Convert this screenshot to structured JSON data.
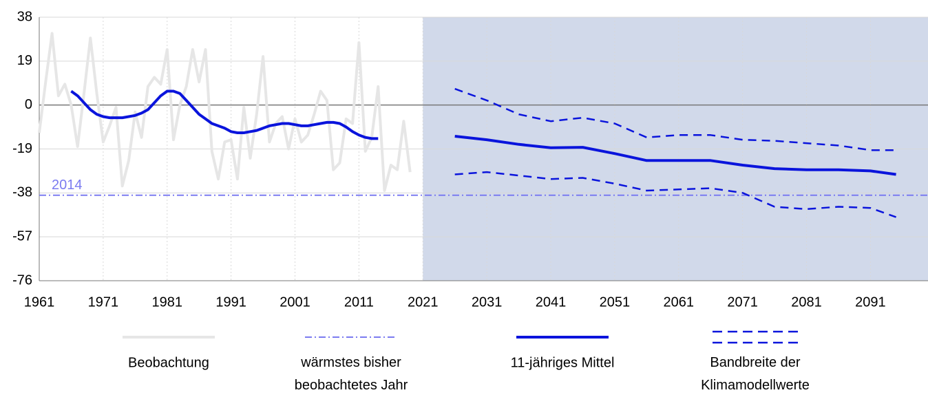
{
  "chart_data": {
    "type": "line",
    "xlim": [
      1961,
      2100
    ],
    "ylim": [
      -76,
      38
    ],
    "xticks": [
      1961,
      1971,
      1981,
      1991,
      2001,
      2011,
      2021,
      2031,
      2041,
      2051,
      2061,
      2071,
      2081,
      2091
    ],
    "yticks": [
      38,
      19,
      0,
      -19,
      -38,
      -57,
      -76
    ],
    "grid": true,
    "shade_from": 2021,
    "shade_color": "#d1d9ea",
    "reference_line": {
      "name": "wärmstes bisher\nbeobachtetes Jahr",
      "label": "2014",
      "value": -39,
      "color": "#7b7bf0"
    },
    "series": [
      {
        "name": "Beobachtung",
        "color": "#e6e6e6",
        "style": "solid",
        "x": [
          1961,
          1962,
          1963,
          1964,
          1965,
          1966,
          1967,
          1968,
          1969,
          1970,
          1971,
          1972,
          1973,
          1974,
          1975,
          1976,
          1977,
          1978,
          1979,
          1980,
          1981,
          1982,
          1983,
          1984,
          1985,
          1986,
          1987,
          1988,
          1989,
          1990,
          1991,
          1992,
          1993,
          1994,
          1995,
          1996,
          1997,
          1998,
          1999,
          2000,
          2001,
          2002,
          2003,
          2004,
          2005,
          2006,
          2007,
          2008,
          2009,
          2010,
          2011,
          2012,
          2013,
          2014,
          2015,
          2016,
          2017,
          2018,
          2019
        ],
        "values": [
          -12,
          10,
          31,
          4,
          9,
          0,
          -18,
          5,
          29,
          5,
          -16,
          -9,
          -1,
          -35,
          -24,
          -3,
          -14,
          8,
          12,
          9,
          24,
          -15,
          0,
          8,
          24,
          10,
          24,
          -20,
          -32,
          -16,
          -15,
          -32,
          -1,
          -23,
          -4,
          21,
          -16,
          -8,
          -5,
          -19,
          -6,
          -16,
          -13,
          -4,
          6,
          2,
          -28,
          -25,
          -6,
          -8,
          27,
          -20,
          -14,
          8,
          -37,
          -26,
          -28,
          -7,
          -29
        ]
      },
      {
        "name": "11-jähriges Mittel",
        "color": "#0a14dc",
        "style": "solid",
        "x": [
          1966,
          1967,
          1968,
          1969,
          1970,
          1971,
          1972,
          1973,
          1974,
          1975,
          1976,
          1977,
          1978,
          1979,
          1980,
          1981,
          1982,
          1983,
          1984,
          1985,
          1986,
          1987,
          1988,
          1989,
          1990,
          1991,
          1992,
          1993,
          1994,
          1995,
          1996,
          1997,
          1998,
          1999,
          2000,
          2001,
          2002,
          2003,
          2004,
          2005,
          2006,
          2007,
          2008,
          2009,
          2010,
          2011,
          2012,
          2013,
          2014,
          2020,
          2026,
          2031,
          2036,
          2041,
          2046,
          2051,
          2056,
          2061,
          2066,
          2071,
          2076,
          2081,
          2086,
          2091,
          2095
        ],
        "values": [
          6,
          4,
          1,
          -2,
          -4,
          -5,
          -5.5,
          -5.5,
          -5.5,
          -5,
          -4.5,
          -3.5,
          -2,
          1,
          4,
          6,
          6,
          5,
          2,
          -1,
          -4,
          -6,
          -8,
          -9,
          -10,
          -11.5,
          -12,
          -12,
          -11.5,
          -11,
          -10,
          -9,
          -8.5,
          -8,
          -8,
          -8.5,
          -9,
          -9,
          -8.5,
          -8,
          -7.5,
          -7.5,
          -8,
          -9.5,
          -11.5,
          -13,
          -14,
          -14.5,
          -14.5,
          null,
          -13.5,
          -15,
          -17,
          -18.5,
          -18.3,
          -21,
          -24,
          -24,
          -24,
          -26,
          -27.5,
          -28,
          -28,
          -28.5,
          -30
        ]
      },
      {
        "name": "Bandbreite der\nKlimamodellwerte",
        "color": "#0a14dc",
        "style": "dashed",
        "x": [
          2026,
          2031,
          2036,
          2041,
          2046,
          2051,
          2056,
          2061,
          2066,
          2071,
          2076,
          2081,
          2086,
          2091,
          2095
        ],
        "values": [
          7,
          2,
          -4,
          -7,
          -5.5,
          -8,
          -14,
          -13,
          -13,
          -15,
          -15.5,
          -16.5,
          -17.5,
          -19.5,
          -19.5
        ],
        "values_lower": [
          -30,
          -29,
          -30.5,
          -32,
          -31.5,
          -34,
          -37,
          -36.5,
          -36,
          -38,
          -44,
          -45,
          -44,
          -44.5,
          -48.5
        ]
      }
    ]
  }
}
